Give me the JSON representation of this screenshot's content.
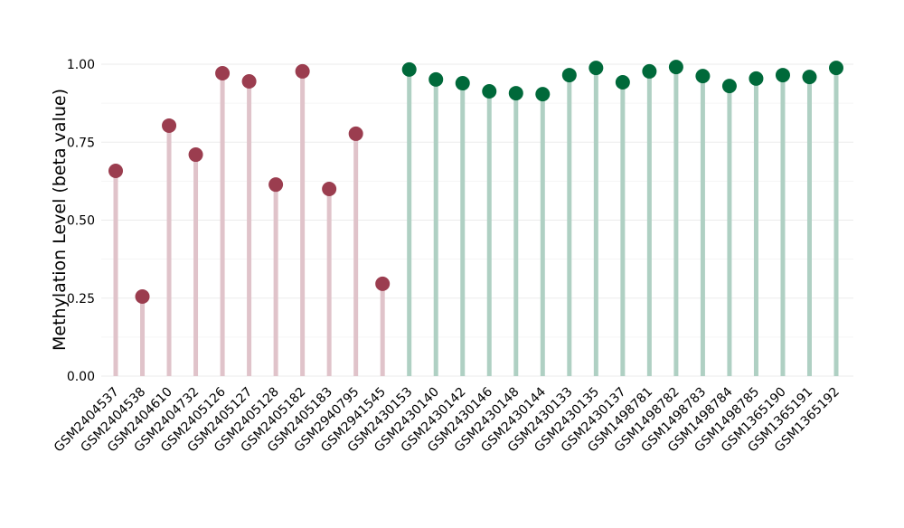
{
  "chart_data": {
    "type": "lollipop",
    "title": "",
    "xlabel": "",
    "ylabel": "Methylation Level (beta value)",
    "ylim": [
      0,
      1.0
    ],
    "yticks": [
      "0.00",
      "0.25",
      "0.50",
      "0.75",
      "1.00"
    ],
    "ytick_values": [
      0,
      0.25,
      0.5,
      0.75,
      1.0
    ],
    "grid": true,
    "colors": {
      "group1_dot": "#9b3d4f",
      "group1_stem": "#e0c3ca",
      "group2_dot": "#00693a",
      "group2_stem": "#afd0c3",
      "grid": "#ebebeb"
    },
    "categories": [
      "GSM2404537",
      "GSM2404538",
      "GSM2404610",
      "GSM2404732",
      "GSM2405126",
      "GSM2405127",
      "GSM2405128",
      "GSM2405182",
      "GSM2405183",
      "GSM2940795",
      "GSM2941545",
      "GSM2430153",
      "GSM2430140",
      "GSM2430142",
      "GSM2430146",
      "GSM2430148",
      "GSM2430144",
      "GSM2430133",
      "GSM2430135",
      "GSM2430137",
      "GSM1498781",
      "GSM1498782",
      "GSM1498783",
      "GSM1498784",
      "GSM1498785",
      "GSM1365190",
      "GSM1365191",
      "GSM1365192"
    ],
    "values": [
      0.658,
      0.255,
      0.803,
      0.71,
      0.971,
      0.945,
      0.614,
      0.977,
      0.6,
      0.777,
      0.296,
      0.983,
      0.951,
      0.939,
      0.913,
      0.907,
      0.904,
      0.965,
      0.988,
      0.942,
      0.977,
      0.991,
      0.962,
      0.93,
      0.954,
      0.965,
      0.959,
      0.988
    ],
    "groups": [
      1,
      1,
      1,
      1,
      1,
      1,
      1,
      1,
      1,
      1,
      1,
      2,
      2,
      2,
      2,
      2,
      2,
      2,
      2,
      2,
      2,
      2,
      2,
      2,
      2,
      2,
      2,
      2
    ]
  }
}
